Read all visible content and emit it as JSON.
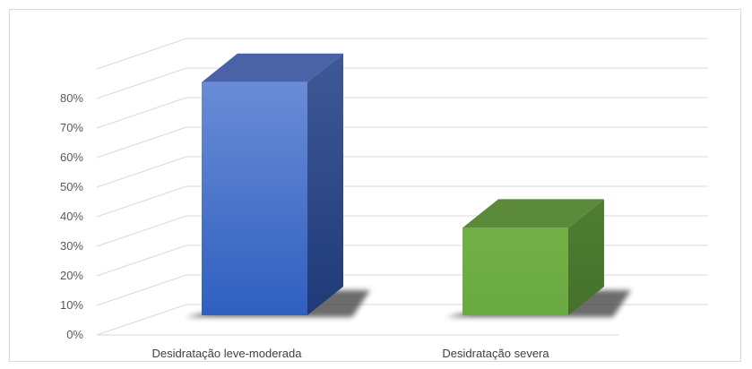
{
  "chart_data": {
    "type": "bar",
    "style": "3d-column",
    "categories": [
      "Desidratação leve-moderada",
      "Desidratação severa"
    ],
    "values": [
      0.8,
      0.3
    ],
    "y_ticks": [
      "0%",
      "10%",
      "20%",
      "30%",
      "40%",
      "50%",
      "60%",
      "70%",
      "80%"
    ],
    "ylim": [
      0,
      0.8
    ],
    "grid": true,
    "legend": "none",
    "colors": {
      "series": [
        "#4472c4",
        "#70ad47"
      ],
      "series_top": [
        "#4a62a6",
        "#5a8a3a"
      ],
      "series_side": [
        "#2d4a8a",
        "#4a7a2e"
      ],
      "gridline": "#d9d9d9",
      "shadow": "#3a3a3a"
    }
  }
}
